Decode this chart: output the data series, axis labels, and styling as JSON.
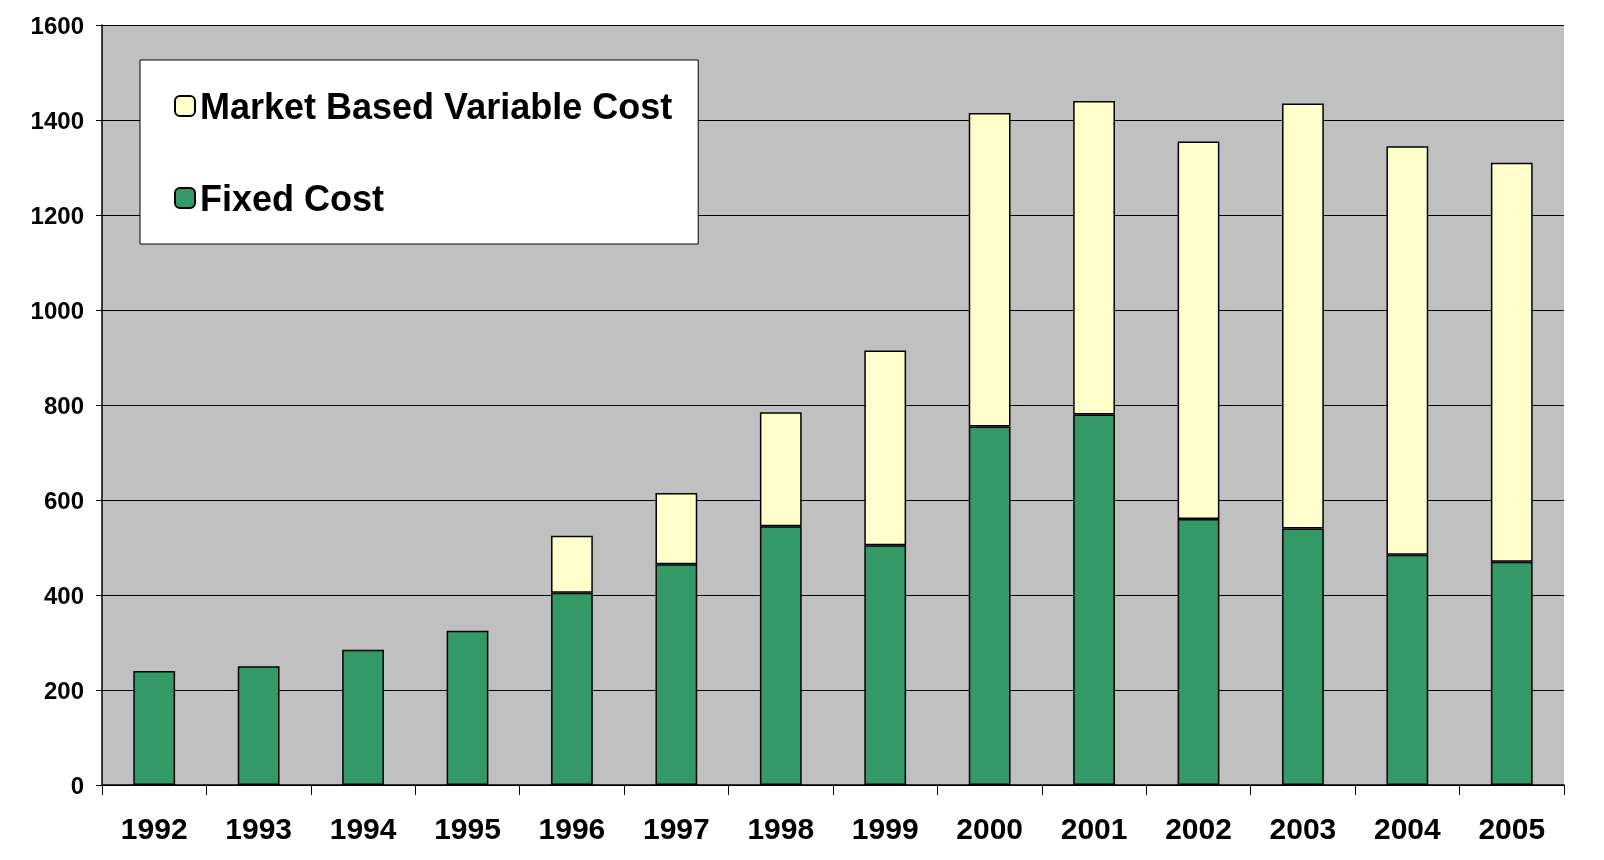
{
  "chart_data": {
    "type": "bar",
    "stacked": true,
    "categories": [
      "1992",
      "1993",
      "1994",
      "1995",
      "1996",
      "1997",
      "1998",
      "1999",
      "2000",
      "2001",
      "2002",
      "2003",
      "2004",
      "2005"
    ],
    "series": [
      {
        "name": "Fixed Cost",
        "color": "#339966",
        "values": [
          240,
          250,
          285,
          325,
          405,
          465,
          545,
          505,
          755,
          780,
          560,
          540,
          485,
          470
        ]
      },
      {
        "name": "Market Based Variable Cost",
        "color": "#ffffcc",
        "values": [
          null,
          null,
          null,
          null,
          120,
          150,
          240,
          410,
          660,
          660,
          795,
          895,
          860,
          840
        ]
      }
    ],
    "ylim": [
      0,
      1600
    ],
    "yticks": [
      0,
      200,
      400,
      600,
      800,
      1000,
      1200,
      1400,
      1600
    ],
    "grid": "y",
    "legend": "top left"
  }
}
